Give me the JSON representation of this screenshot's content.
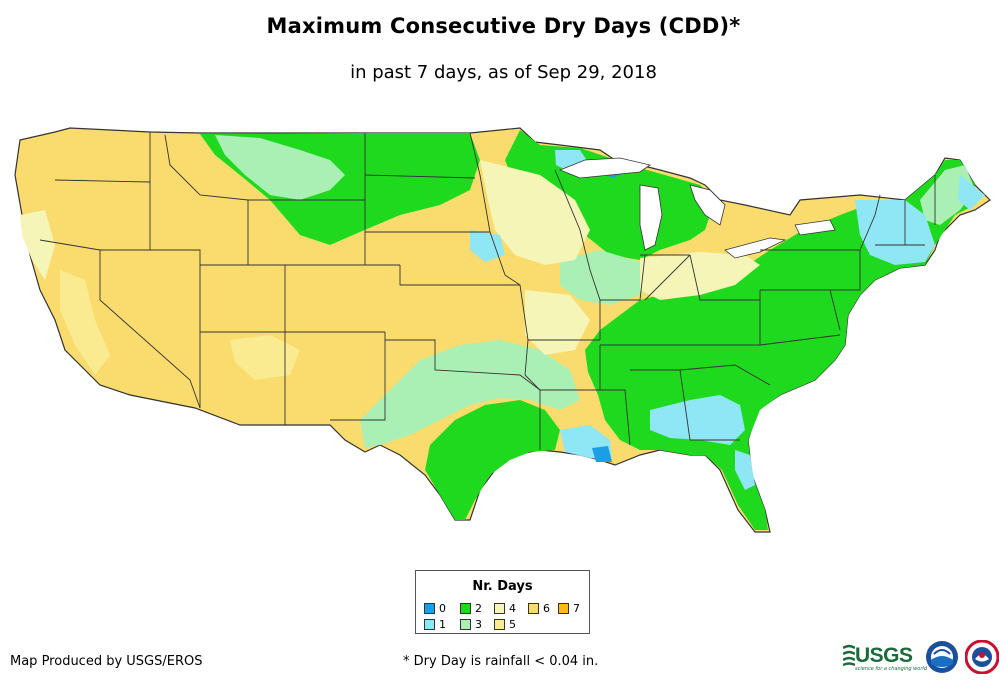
{
  "title": "Maximum Consecutive Dry Days (CDD)*",
  "subtitle": "in past 7 days, as of Sep 29, 2018",
  "legend": {
    "title": "Nr. Days",
    "items": [
      {
        "label": "0",
        "color": "#1a9ee6"
      },
      {
        "label": "1",
        "color": "#8fe6f5"
      },
      {
        "label": "2",
        "color": "#1fd91f"
      },
      {
        "label": "3",
        "color": "#aaf0b4"
      },
      {
        "label": "4",
        "color": "#f5f5b8"
      },
      {
        "label": "5",
        "color": "#faeb91"
      },
      {
        "label": "6",
        "color": "#fadc6e"
      },
      {
        "label": "7",
        "color": "#f5bf0f"
      }
    ]
  },
  "credit": "Map Produced by USGS/EROS",
  "footnote": "* Dry Day is rainfall < 0.04 in.",
  "logos": {
    "usgs": "USGS",
    "usgs_tagline": "science for a changing world"
  }
}
